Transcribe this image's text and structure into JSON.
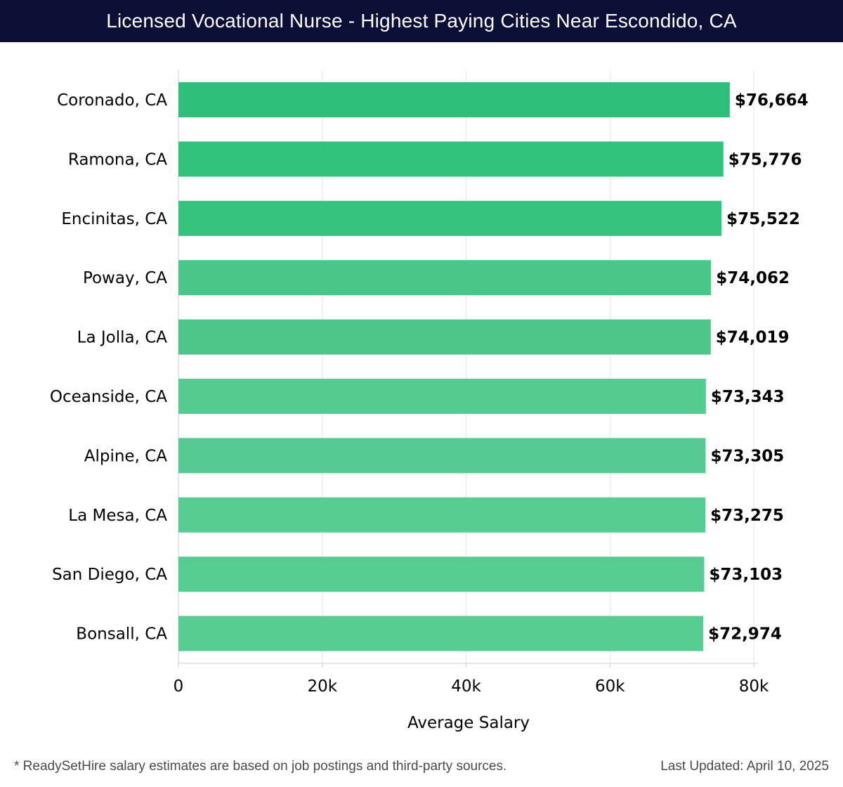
{
  "header": {
    "title": "Licensed Vocational Nurse - Highest Paying Cities Near Escondido, CA"
  },
  "footer": {
    "note": "* ReadySetHire salary estimates are based on job postings and third-party sources.",
    "updated": "Last Updated: April 10, 2025"
  },
  "chart_data": {
    "type": "bar",
    "orientation": "horizontal",
    "title": "Licensed Vocational Nurse - Highest Paying Cities Near Escondido, CA",
    "xlabel": "Average Salary",
    "ylabel": "",
    "xlim": [
      0,
      80000
    ],
    "xticks": [
      {
        "value": 0,
        "label": "0"
      },
      {
        "value": 20000,
        "label": "20k"
      },
      {
        "value": 40000,
        "label": "40k"
      },
      {
        "value": 60000,
        "label": "60k"
      },
      {
        "value": 80000,
        "label": "80k"
      }
    ],
    "grid": true,
    "legend": "none",
    "categories": [
      "Coronado, CA",
      "Ramona, CA",
      "Encinitas, CA",
      "Poway, CA",
      "La Jolla, CA",
      "Oceanside, CA",
      "Alpine, CA",
      "La Mesa, CA",
      "San Diego, CA",
      "Bonsall, CA"
    ],
    "values": [
      76664,
      75776,
      75522,
      74062,
      74019,
      73343,
      73305,
      73275,
      73103,
      72974
    ],
    "value_labels": [
      "$76,664",
      "$75,776",
      "$75,522",
      "$74,062",
      "$74,019",
      "$73,343",
      "$73,305",
      "$73,275",
      "$73,103",
      "$72,974"
    ],
    "colors": [
      "#2ec07a",
      "#32c27c",
      "#35c37e",
      "#4bc68b",
      "#4cc68b",
      "#55ca91",
      "#56ca92",
      "#57cb92",
      "#58cb93",
      "#59cc94"
    ]
  }
}
